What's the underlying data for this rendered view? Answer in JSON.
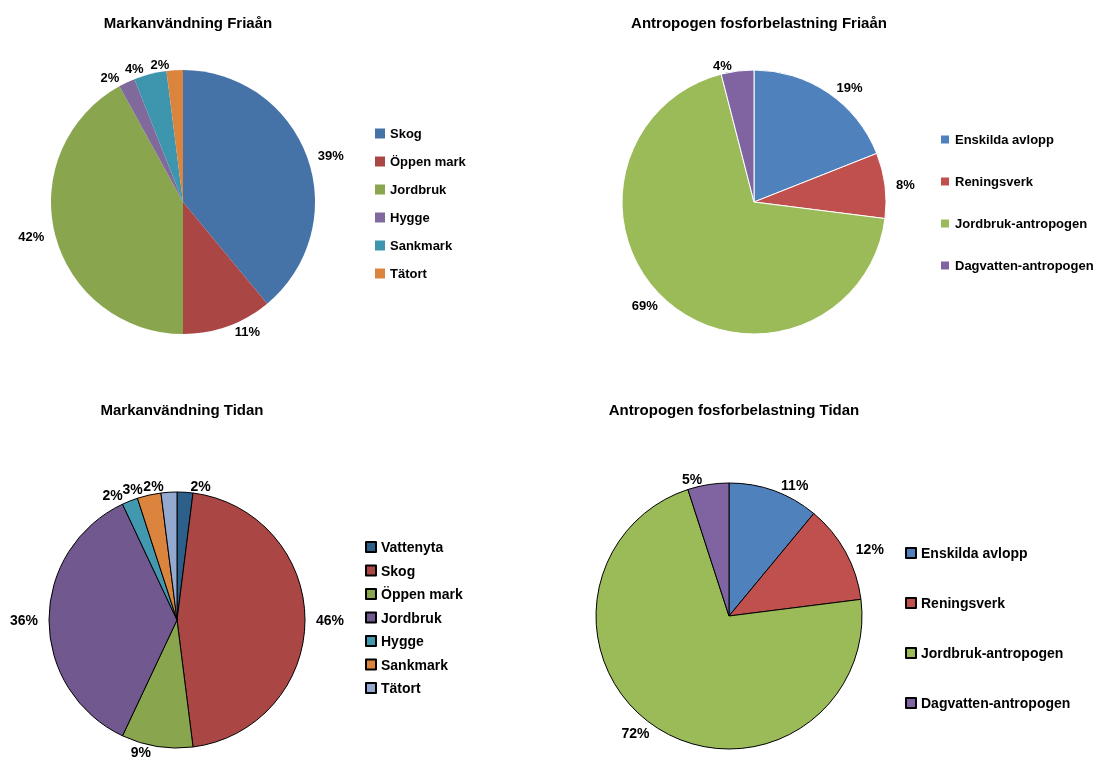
{
  "chart_data": [
    {
      "type": "pie",
      "title": "Markanvändning Friaån",
      "categories": [
        "Skog",
        "Öppen mark",
        "Jordbruk",
        "Hygge",
        "Sankmark",
        "Tätort"
      ],
      "values": [
        39,
        11,
        42,
        2,
        4,
        2
      ],
      "value_labels": [
        "39%",
        "11%",
        "42%",
        "2%",
        "4%",
        "2%"
      ],
      "colors": [
        "#4572a7",
        "#aa4643",
        "#89a54e",
        "#80699b",
        "#3d96ae",
        "#db843d"
      ],
      "legend": "right"
    },
    {
      "type": "pie",
      "title": "Antropogen fosforbelastning Friaån",
      "categories": [
        "Enskilda avlopp",
        "Reningsverk",
        "Jordbruk-antropogen",
        "Dagvatten-antropogen"
      ],
      "values": [
        19,
        8,
        69,
        4
      ],
      "value_labels": [
        "19%",
        "8%",
        "69%",
        "4%"
      ],
      "colors": [
        "#4f81bd",
        "#c0504d",
        "#9bbb59",
        "#8064a2"
      ],
      "legend": "right"
    },
    {
      "type": "pie",
      "title": "Markanvändning Tidan",
      "categories": [
        "Vattenyta",
        "Skog",
        "Öppen mark",
        "Jordbruk",
        "Hygge",
        "Sankmark",
        "Tätort"
      ],
      "values": [
        2,
        46,
        9,
        36,
        2,
        3,
        2
      ],
      "value_labels": [
        "2%",
        "46%",
        "9%",
        "36%",
        "2%",
        "3%",
        "2%"
      ],
      "colors": [
        "#2c5f8a",
        "#aa4643",
        "#89a54e",
        "#71588f",
        "#4198af",
        "#db843d",
        "#93a9cf"
      ],
      "legend": "right"
    },
    {
      "type": "pie",
      "title": "Antropogen fosforbelastning Tidan",
      "categories": [
        "Enskilda avlopp",
        "Reningsverk",
        "Jordbruk-antropogen",
        "Dagvatten-antropogen"
      ],
      "values": [
        11,
        12,
        72,
        5
      ],
      "value_labels": [
        "11%",
        "12%",
        "72%",
        "5%"
      ],
      "colors": [
        "#4f81bd",
        "#c0504d",
        "#9bbb59",
        "#8064a2"
      ],
      "legend": "right"
    }
  ]
}
